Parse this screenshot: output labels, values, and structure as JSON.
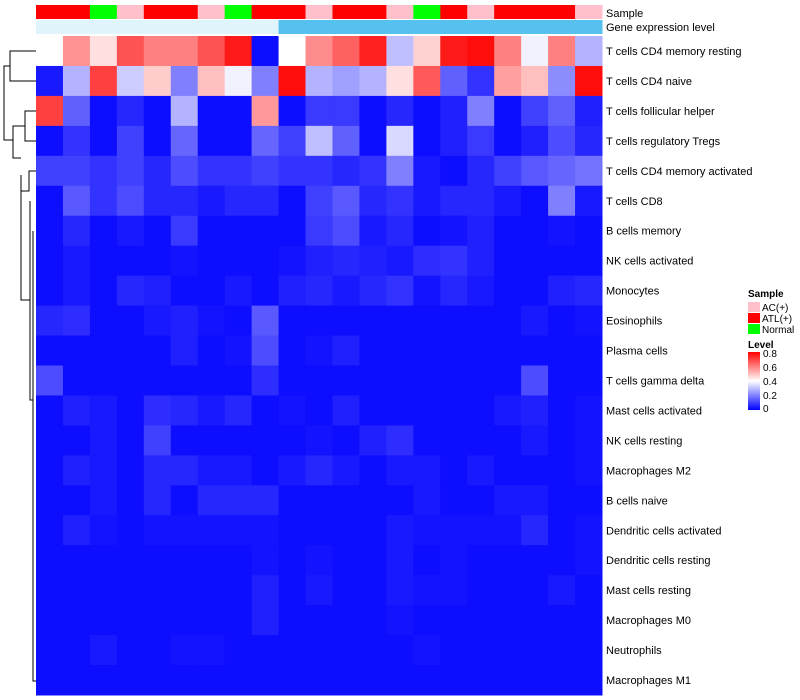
{
  "chart_data": {
    "type": "heatmap",
    "title": "",
    "annotation_labels": [
      "Sample",
      "Gene expression level"
    ],
    "columns_sample": [
      "ATL(+)",
      "ATL(+)",
      "Normal",
      "AC(+)",
      "ATL(+)",
      "ATL(+)",
      "AC(+)",
      "Normal",
      "ATL(+)",
      "ATL(+)",
      "AC(+)",
      "ATL(+)",
      "ATL(+)",
      "AC(+)",
      "Normal",
      "ATL(+)",
      "AC(+)",
      "ATL(+)",
      "ATL(+)",
      "ATL(+)",
      "AC(+)"
    ],
    "columns_expression": [
      "low",
      "low",
      "low",
      "low",
      "low",
      "low",
      "low",
      "low",
      "low",
      "high",
      "high",
      "high",
      "high",
      "high",
      "high",
      "high",
      "high",
      "high",
      "high",
      "high",
      "high"
    ],
    "rows": [
      "T cells CD4 memory resting",
      "T cells CD4 naive",
      "T cells follicular helper",
      "T cells regulatory  Tregs",
      "T cells CD4 memory activated",
      "T cells CD8",
      "B cells memory",
      "NK cells activated",
      "Monocytes",
      "Eosinophils",
      "Plasma cells",
      "T cells gamma delta",
      "Mast cells activated",
      "NK cells resting",
      "Macrophages M2",
      "B cells naive",
      "Dendritic cells activated",
      "Dendritic cells resting",
      "Mast cells resting",
      "Macrophages M0",
      "Neutrophils",
      "Macrophages M1"
    ],
    "values": [
      [
        0.4,
        0.57,
        0.45,
        0.67,
        0.6,
        0.6,
        0.67,
        0.76,
        0.02,
        0.4,
        0.58,
        0.65,
        0.75,
        0.3,
        0.47,
        0.76,
        0.78,
        0.6,
        0.38,
        0.6,
        0.28
      ],
      [
        0.04,
        0.28,
        0.7,
        0.32,
        0.48,
        0.2,
        0.5,
        0.38,
        0.2,
        0.78,
        0.28,
        0.25,
        0.28,
        0.45,
        0.66,
        0.15,
        0.08,
        0.55,
        0.5,
        0.22,
        0.78
      ],
      [
        0.7,
        0.15,
        0.02,
        0.06,
        0.02,
        0.28,
        0.02,
        0.02,
        0.56,
        0.02,
        0.09,
        0.09,
        0.02,
        0.06,
        0.02,
        0.05,
        0.2,
        0.02,
        0.1,
        0.15,
        0.05
      ],
      [
        0.02,
        0.08,
        0.02,
        0.1,
        0.02,
        0.16,
        0.02,
        0.02,
        0.16,
        0.1,
        0.3,
        0.15,
        0.02,
        0.34,
        0.02,
        0.05,
        0.09,
        0.02,
        0.05,
        0.12,
        0.06
      ],
      [
        0.1,
        0.1,
        0.08,
        0.1,
        0.06,
        0.12,
        0.08,
        0.08,
        0.1,
        0.08,
        0.08,
        0.06,
        0.08,
        0.2,
        0.04,
        0.02,
        0.06,
        0.1,
        0.14,
        0.16,
        0.18
      ],
      [
        0.02,
        0.14,
        0.08,
        0.12,
        0.06,
        0.06,
        0.04,
        0.06,
        0.06,
        0.02,
        0.1,
        0.14,
        0.06,
        0.08,
        0.04,
        0.06,
        0.06,
        0.04,
        0.02,
        0.2,
        0.04
      ],
      [
        0.02,
        0.06,
        0.02,
        0.04,
        0.02,
        0.09,
        0.02,
        0.02,
        0.02,
        0.02,
        0.09,
        0.12,
        0.04,
        0.06,
        0.02,
        0.03,
        0.05,
        0.02,
        0.02,
        0.03,
        0.02
      ],
      [
        0.02,
        0.04,
        0.02,
        0.02,
        0.02,
        0.03,
        0.02,
        0.02,
        0.02,
        0.03,
        0.05,
        0.06,
        0.05,
        0.04,
        0.07,
        0.08,
        0.05,
        0.02,
        0.02,
        0.02,
        0.02
      ],
      [
        0.02,
        0.04,
        0.02,
        0.06,
        0.05,
        0.02,
        0.02,
        0.04,
        0.02,
        0.05,
        0.06,
        0.04,
        0.06,
        0.08,
        0.03,
        0.06,
        0.04,
        0.02,
        0.02,
        0.05,
        0.06
      ],
      [
        0.06,
        0.07,
        0.02,
        0.02,
        0.04,
        0.05,
        0.03,
        0.02,
        0.14,
        0.02,
        0.02,
        0.02,
        0.02,
        0.02,
        0.02,
        0.02,
        0.02,
        0.02,
        0.04,
        0.02,
        0.03
      ],
      [
        0.02,
        0.02,
        0.02,
        0.02,
        0.02,
        0.05,
        0.02,
        0.03,
        0.12,
        0.02,
        0.03,
        0.05,
        0.02,
        0.02,
        0.02,
        0.02,
        0.02,
        0.02,
        0.02,
        0.02,
        0.02
      ],
      [
        0.12,
        0.02,
        0.02,
        0.02,
        0.02,
        0.02,
        0.02,
        0.02,
        0.07,
        0.02,
        0.02,
        0.02,
        0.02,
        0.02,
        0.02,
        0.02,
        0.02,
        0.02,
        0.12,
        0.02,
        0.02
      ],
      [
        0.02,
        0.05,
        0.04,
        0.02,
        0.07,
        0.06,
        0.04,
        0.06,
        0.02,
        0.03,
        0.02,
        0.05,
        0.02,
        0.02,
        0.02,
        0.02,
        0.02,
        0.04,
        0.05,
        0.02,
        0.03
      ],
      [
        0.02,
        0.02,
        0.04,
        0.02,
        0.1,
        0.02,
        0.02,
        0.02,
        0.02,
        0.02,
        0.03,
        0.02,
        0.05,
        0.07,
        0.02,
        0.02,
        0.02,
        0.02,
        0.04,
        0.02,
        0.03
      ],
      [
        0.02,
        0.05,
        0.04,
        0.02,
        0.06,
        0.06,
        0.04,
        0.04,
        0.02,
        0.04,
        0.06,
        0.04,
        0.02,
        0.04,
        0.04,
        0.02,
        0.04,
        0.02,
        0.02,
        0.02,
        0.03
      ],
      [
        0.02,
        0.02,
        0.04,
        0.02,
        0.06,
        0.02,
        0.06,
        0.06,
        0.06,
        0.02,
        0.02,
        0.02,
        0.02,
        0.02,
        0.04,
        0.02,
        0.02,
        0.04,
        0.04,
        0.02,
        0.02
      ],
      [
        0.02,
        0.05,
        0.03,
        0.02,
        0.03,
        0.03,
        0.03,
        0.03,
        0.03,
        0.02,
        0.02,
        0.02,
        0.02,
        0.04,
        0.03,
        0.03,
        0.03,
        0.03,
        0.06,
        0.02,
        0.03
      ],
      [
        0.02,
        0.02,
        0.02,
        0.02,
        0.02,
        0.02,
        0.02,
        0.02,
        0.03,
        0.02,
        0.03,
        0.02,
        0.02,
        0.04,
        0.02,
        0.03,
        0.02,
        0.02,
        0.02,
        0.02,
        0.03
      ],
      [
        0.02,
        0.02,
        0.02,
        0.02,
        0.02,
        0.02,
        0.02,
        0.02,
        0.05,
        0.02,
        0.04,
        0.02,
        0.02,
        0.04,
        0.03,
        0.03,
        0.02,
        0.02,
        0.02,
        0.04,
        0.02
      ],
      [
        0.02,
        0.02,
        0.02,
        0.02,
        0.02,
        0.02,
        0.02,
        0.02,
        0.05,
        0.02,
        0.02,
        0.02,
        0.02,
        0.03,
        0.02,
        0.02,
        0.02,
        0.02,
        0.02,
        0.02,
        0.02
      ],
      [
        0.02,
        0.02,
        0.04,
        0.02,
        0.02,
        0.03,
        0.03,
        0.02,
        0.02,
        0.02,
        0.02,
        0.02,
        0.02,
        0.02,
        0.03,
        0.02,
        0.02,
        0.02,
        0.02,
        0.02,
        0.02
      ],
      [
        0.02,
        0.02,
        0.02,
        0.02,
        0.02,
        0.02,
        0.02,
        0.02,
        0.02,
        0.02,
        0.02,
        0.02,
        0.02,
        0.02,
        0.02,
        0.02,
        0.02,
        0.02,
        0.02,
        0.02,
        0.02
      ]
    ],
    "color_scale": {
      "min": 0,
      "max": 0.8,
      "stops": [
        {
          "value": 0,
          "color": "#0000ff"
        },
        {
          "value": 0.4,
          "color": "#ffffff"
        },
        {
          "value": 0.8,
          "color": "#ff0000"
        }
      ]
    },
    "sample_colors": {
      "AC(+)": "#ffc0cb",
      "ATL(+)": "#ff0000",
      "Normal": "#00ff00"
    },
    "expression_colors": {
      "low": "#e0f4fb",
      "high": "#56c1ee"
    },
    "legend": {
      "sample_title": "Sample",
      "sample_entries": [
        "AC(+)",
        "ATL(+)",
        "Normal"
      ],
      "level_title": "Level",
      "level_ticks": [
        "0.8",
        "0.6",
        "0.4",
        "0.2",
        "0"
      ]
    }
  }
}
